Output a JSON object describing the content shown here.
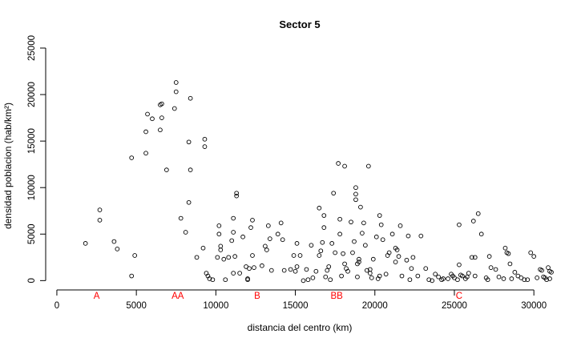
{
  "chart_data": {
    "type": "scatter",
    "title": "Sector 5",
    "xlabel": "distancia del centro (km)",
    "ylabel": "densidad poblacion (hab/km²)",
    "xlim": [
      -350,
      31150
    ],
    "ylim": [
      -400,
      25000
    ],
    "xticks": [
      0,
      5000,
      10000,
      15000,
      20000,
      25000,
      30000
    ],
    "yticks": [
      0,
      5000,
      10000,
      15000,
      20000,
      25000
    ],
    "grid": false,
    "legend": "none",
    "marker": "open-circle",
    "zone_color": "#ff0000",
    "zone_labels": [
      {
        "text": "A",
        "x": 2500
      },
      {
        "text": "AA",
        "x": 7600
      },
      {
        "text": "B",
        "x": 12600
      },
      {
        "text": "BB",
        "x": 17600
      },
      {
        "text": "C",
        "x": 25300
      }
    ],
    "points": [
      [
        1800,
        4000
      ],
      [
        2700,
        7600
      ],
      [
        2700,
        6500
      ],
      [
        3600,
        4200
      ],
      [
        3800,
        3400
      ],
      [
        4700,
        13200
      ],
      [
        4700,
        500
      ],
      [
        4900,
        2700
      ],
      [
        5600,
        16000
      ],
      [
        5600,
        13700
      ],
      [
        5700,
        17900
      ],
      [
        6000,
        17400
      ],
      [
        6500,
        16200
      ],
      [
        6500,
        18900
      ],
      [
        6600,
        19000
      ],
      [
        6600,
        17500
      ],
      [
        6900,
        11900
      ],
      [
        7400,
        18500
      ],
      [
        7500,
        21300
      ],
      [
        7500,
        20300
      ],
      [
        7800,
        6700
      ],
      [
        8100,
        5200
      ],
      [
        8300,
        14900
      ],
      [
        8300,
        8400
      ],
      [
        8400,
        19600
      ],
      [
        8400,
        11900
      ],
      [
        8800,
        2500
      ],
      [
        9200,
        3500
      ],
      [
        9300,
        15200
      ],
      [
        9300,
        14400
      ],
      [
        9400,
        800
      ],
      [
        9500,
        500
      ],
      [
        9600,
        200
      ],
      [
        9800,
        100
      ],
      [
        10100,
        2500
      ],
      [
        10200,
        5900
      ],
      [
        10200,
        5000
      ],
      [
        10300,
        3700
      ],
      [
        10300,
        3300
      ],
      [
        10500,
        2300
      ],
      [
        10600,
        100
      ],
      [
        10800,
        2500
      ],
      [
        11000,
        4300
      ],
      [
        11100,
        6700
      ],
      [
        11100,
        5200
      ],
      [
        11100,
        800
      ],
      [
        11200,
        2600
      ],
      [
        11300,
        9400
      ],
      [
        11300,
        9100
      ],
      [
        11500,
        800
      ],
      [
        11700,
        4700
      ],
      [
        11900,
        1500
      ],
      [
        12000,
        200
      ],
      [
        12000,
        100
      ],
      [
        12100,
        1300
      ],
      [
        12200,
        5700
      ],
      [
        12300,
        6500
      ],
      [
        12300,
        2700
      ],
      [
        12400,
        1400
      ],
      [
        12900,
        1600
      ],
      [
        13100,
        3700
      ],
      [
        13200,
        3300
      ],
      [
        13300,
        5900
      ],
      [
        13400,
        4500
      ],
      [
        13500,
        1100
      ],
      [
        13900,
        5000
      ],
      [
        14100,
        6200
      ],
      [
        14200,
        4400
      ],
      [
        14300,
        1100
      ],
      [
        14700,
        1200
      ],
      [
        14900,
        2700
      ],
      [
        15000,
        1000
      ],
      [
        15100,
        4000
      ],
      [
        15100,
        1500
      ],
      [
        15300,
        2700
      ],
      [
        15500,
        0
      ],
      [
        15700,
        1200
      ],
      [
        15800,
        100
      ],
      [
        16000,
        3800
      ],
      [
        16100,
        300
      ],
      [
        16300,
        1000
      ],
      [
        16500,
        7800
      ],
      [
        16500,
        2700
      ],
      [
        16600,
        3200
      ],
      [
        16700,
        4100
      ],
      [
        16800,
        7000
      ],
      [
        16800,
        5700
      ],
      [
        16900,
        400
      ],
      [
        17000,
        1100
      ],
      [
        17100,
        1500
      ],
      [
        17200,
        100
      ],
      [
        17300,
        4000
      ],
      [
        17400,
        9400
      ],
      [
        17500,
        3000
      ],
      [
        17700,
        12600
      ],
      [
        17800,
        6600
      ],
      [
        17800,
        5000
      ],
      [
        17900,
        500
      ],
      [
        18000,
        2900
      ],
      [
        18100,
        1800
      ],
      [
        18100,
        12300
      ],
      [
        18200,
        1300
      ],
      [
        18300,
        1000
      ],
      [
        18500,
        6300
      ],
      [
        18600,
        3000
      ],
      [
        18700,
        4200
      ],
      [
        18800,
        10000
      ],
      [
        18800,
        9300
      ],
      [
        18800,
        8700
      ],
      [
        18900,
        400
      ],
      [
        18900,
        1800
      ],
      [
        19000,
        2300
      ],
      [
        19000,
        2000
      ],
      [
        19100,
        7900
      ],
      [
        19200,
        5100
      ],
      [
        19300,
        6200
      ],
      [
        19400,
        3800
      ],
      [
        19500,
        1100
      ],
      [
        19600,
        12300
      ],
      [
        19700,
        800
      ],
      [
        19700,
        1200
      ],
      [
        19800,
        300
      ],
      [
        19900,
        2300
      ],
      [
        20100,
        4700
      ],
      [
        20200,
        200
      ],
      [
        20300,
        7000
      ],
      [
        20300,
        500
      ],
      [
        20400,
        6000
      ],
      [
        20500,
        4400
      ],
      [
        20700,
        700
      ],
      [
        20800,
        2700
      ],
      [
        20900,
        3000
      ],
      [
        21100,
        5000
      ],
      [
        21300,
        3500
      ],
      [
        21300,
        2000
      ],
      [
        21400,
        3300
      ],
      [
        21500,
        2600
      ],
      [
        21600,
        5900
      ],
      [
        21700,
        500
      ],
      [
        22000,
        2200
      ],
      [
        22100,
        4800
      ],
      [
        22200,
        100
      ],
      [
        22300,
        1300
      ],
      [
        22400,
        2500
      ],
      [
        22700,
        500
      ],
      [
        22900,
        4800
      ],
      [
        23200,
        1300
      ],
      [
        23400,
        100
      ],
      [
        23600,
        0
      ],
      [
        23800,
        700
      ],
      [
        24000,
        400
      ],
      [
        24200,
        100
      ],
      [
        24300,
        200
      ],
      [
        24600,
        200
      ],
      [
        24800,
        700
      ],
      [
        24900,
        500
      ],
      [
        25000,
        300
      ],
      [
        25200,
        100
      ],
      [
        25300,
        6000
      ],
      [
        25300,
        1700
      ],
      [
        25400,
        600
      ],
      [
        25500,
        500
      ],
      [
        25700,
        200
      ],
      [
        25800,
        400
      ],
      [
        25900,
        800
      ],
      [
        26100,
        2500
      ],
      [
        26200,
        6400
      ],
      [
        26300,
        2500
      ],
      [
        26300,
        500
      ],
      [
        26500,
        7200
      ],
      [
        26700,
        5000
      ],
      [
        27000,
        300
      ],
      [
        27100,
        100
      ],
      [
        27200,
        2600
      ],
      [
        27300,
        1400
      ],
      [
        27600,
        1200
      ],
      [
        27800,
        400
      ],
      [
        28100,
        200
      ],
      [
        28200,
        3500
      ],
      [
        28300,
        3000
      ],
      [
        28400,
        2900
      ],
      [
        28500,
        1800
      ],
      [
        28600,
        200
      ],
      [
        28800,
        900
      ],
      [
        29000,
        500
      ],
      [
        29200,
        300
      ],
      [
        29400,
        100
      ],
      [
        29600,
        100
      ],
      [
        29800,
        3000
      ],
      [
        30000,
        2600
      ],
      [
        30200,
        300
      ],
      [
        30400,
        1200
      ],
      [
        30500,
        1100
      ],
      [
        30600,
        400
      ],
      [
        30700,
        300
      ],
      [
        30800,
        100
      ],
      [
        30900,
        1400
      ],
      [
        31000,
        1000
      ],
      [
        31000,
        200
      ],
      [
        31100,
        900
      ]
    ]
  }
}
